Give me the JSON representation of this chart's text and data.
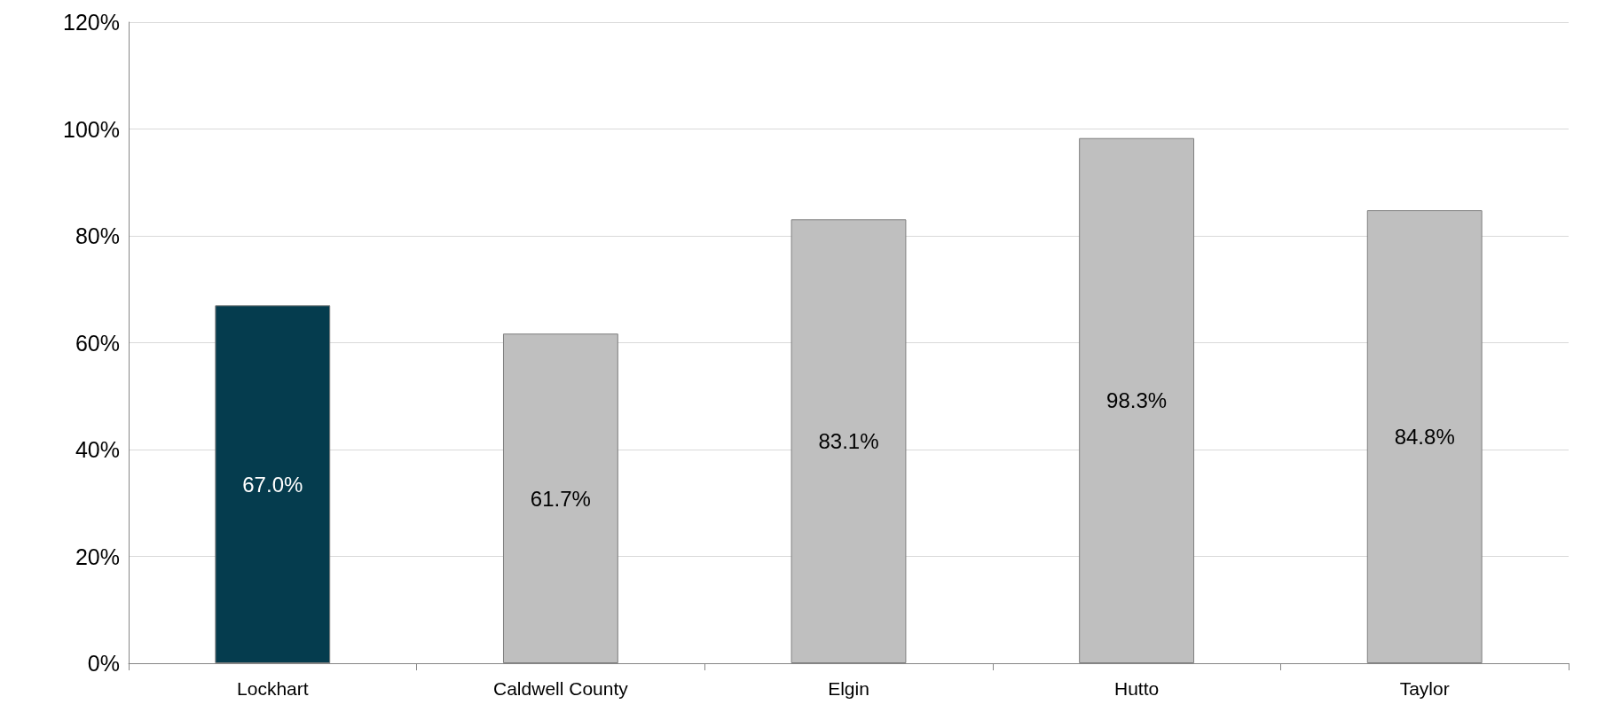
{
  "chart_data": {
    "type": "bar",
    "categories": [
      "Lockhart",
      "Caldwell County",
      "Elgin",
      "Hutto",
      "Taylor"
    ],
    "values": [
      67.0,
      61.7,
      83.1,
      98.3,
      84.8
    ],
    "colors": [
      "#053c4e",
      "#bfbfbf",
      "#bfbfbf",
      "#bfbfbf",
      "#bfbfbf"
    ],
    "value_labels": [
      "67.0%",
      "61.7%",
      "83.1%",
      "98.3%",
      "84.8%"
    ],
    "ylim": [
      0,
      120
    ],
    "yticks": [
      {
        "value": 0,
        "label": "0%"
      },
      {
        "value": 20,
        "label": "20%"
      },
      {
        "value": 40,
        "label": "40%"
      },
      {
        "value": 60,
        "label": "60%"
      },
      {
        "value": 80,
        "label": "80%"
      },
      {
        "value": 100,
        "label": "100%"
      },
      {
        "value": 120,
        "label": "120%"
      }
    ],
    "grid": "y"
  }
}
